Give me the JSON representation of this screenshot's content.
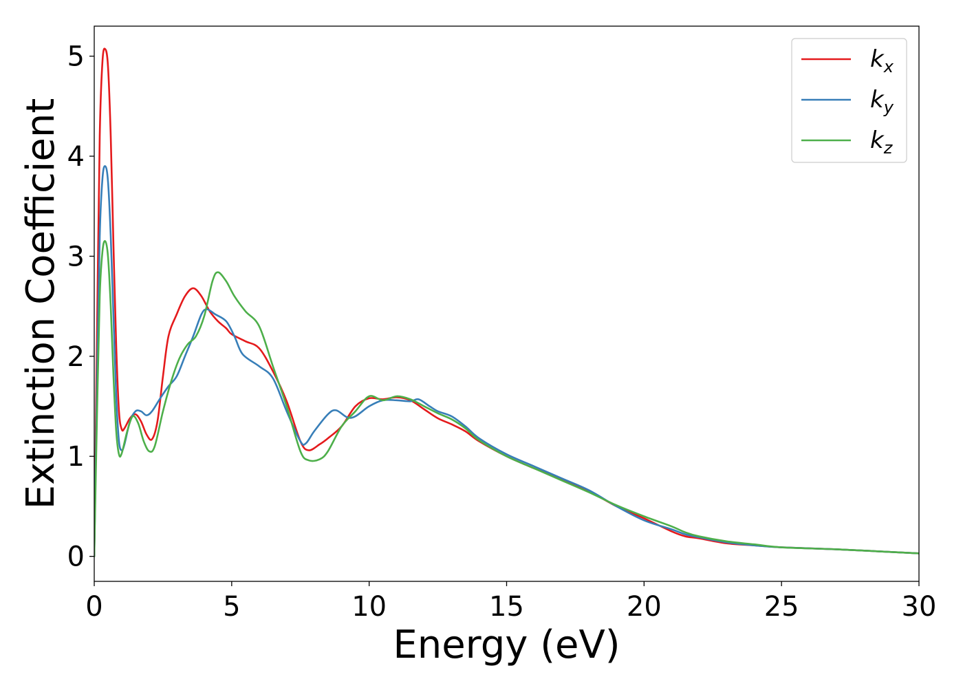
{
  "chart_data": {
    "type": "line",
    "title": "",
    "xlabel": "Energy (eV)",
    "ylabel": "Extinction Coefficient",
    "xlim": [
      0,
      30
    ],
    "ylim": [
      -0.25,
      5.3
    ],
    "xticks": [
      0,
      5,
      10,
      15,
      20,
      25,
      30
    ],
    "yticks": [
      0,
      1,
      2,
      3,
      4,
      5
    ],
    "grid": false,
    "legend_position": "top-right",
    "series": [
      {
        "name": "k_x",
        "label_main": "k",
        "label_sub": "x",
        "color": "#e41a1c",
        "points": [
          [
            0,
            0
          ],
          [
            0.1,
            2.2
          ],
          [
            0.2,
            4.2
          ],
          [
            0.3,
            4.95
          ],
          [
            0.4,
            5.07
          ],
          [
            0.5,
            4.9
          ],
          [
            0.6,
            4.2
          ],
          [
            0.7,
            3.1
          ],
          [
            0.8,
            2.1
          ],
          [
            0.9,
            1.45
          ],
          [
            1.0,
            1.27
          ],
          [
            1.1,
            1.28
          ],
          [
            1.3,
            1.38
          ],
          [
            1.5,
            1.42
          ],
          [
            1.7,
            1.35
          ],
          [
            1.9,
            1.22
          ],
          [
            2.1,
            1.17
          ],
          [
            2.3,
            1.35
          ],
          [
            2.5,
            1.8
          ],
          [
            2.7,
            2.2
          ],
          [
            3.0,
            2.42
          ],
          [
            3.3,
            2.6
          ],
          [
            3.6,
            2.68
          ],
          [
            3.9,
            2.6
          ],
          [
            4.2,
            2.45
          ],
          [
            4.5,
            2.35
          ],
          [
            4.8,
            2.28
          ],
          [
            5.0,
            2.22
          ],
          [
            5.5,
            2.15
          ],
          [
            6.0,
            2.08
          ],
          [
            6.5,
            1.85
          ],
          [
            7.0,
            1.55
          ],
          [
            7.5,
            1.15
          ],
          [
            7.8,
            1.06
          ],
          [
            8.2,
            1.12
          ],
          [
            8.5,
            1.18
          ],
          [
            9.0,
            1.3
          ],
          [
            9.5,
            1.5
          ],
          [
            10.0,
            1.58
          ],
          [
            10.5,
            1.57
          ],
          [
            11.0,
            1.59
          ],
          [
            11.5,
            1.56
          ],
          [
            12.0,
            1.47
          ],
          [
            12.5,
            1.38
          ],
          [
            13.0,
            1.32
          ],
          [
            13.5,
            1.25
          ],
          [
            14.0,
            1.15
          ],
          [
            15.0,
            1.0
          ],
          [
            16.0,
            0.88
          ],
          [
            17.0,
            0.77
          ],
          [
            18.0,
            0.65
          ],
          [
            19.0,
            0.5
          ],
          [
            20.0,
            0.38
          ],
          [
            21.0,
            0.25
          ],
          [
            21.5,
            0.2
          ],
          [
            22.0,
            0.18
          ],
          [
            23.0,
            0.13
          ],
          [
            24.0,
            0.11
          ],
          [
            25.0,
            0.09
          ],
          [
            27.0,
            0.07
          ],
          [
            30.0,
            0.03
          ]
        ]
      },
      {
        "name": "k_y",
        "label_main": "k",
        "label_sub": "y",
        "color": "#377eb8",
        "points": [
          [
            0,
            0
          ],
          [
            0.1,
            1.7
          ],
          [
            0.2,
            3.2
          ],
          [
            0.3,
            3.78
          ],
          [
            0.4,
            3.9
          ],
          [
            0.5,
            3.75
          ],
          [
            0.6,
            3.2
          ],
          [
            0.7,
            2.4
          ],
          [
            0.8,
            1.6
          ],
          [
            0.9,
            1.15
          ],
          [
            1.0,
            1.06
          ],
          [
            1.1,
            1.12
          ],
          [
            1.3,
            1.35
          ],
          [
            1.5,
            1.45
          ],
          [
            1.7,
            1.45
          ],
          [
            1.9,
            1.41
          ],
          [
            2.1,
            1.45
          ],
          [
            2.4,
            1.58
          ],
          [
            2.7,
            1.7
          ],
          [
            3.0,
            1.8
          ],
          [
            3.3,
            2.0
          ],
          [
            3.6,
            2.2
          ],
          [
            3.9,
            2.42
          ],
          [
            4.1,
            2.47
          ],
          [
            4.4,
            2.42
          ],
          [
            4.8,
            2.35
          ],
          [
            5.1,
            2.2
          ],
          [
            5.4,
            2.02
          ],
          [
            6.0,
            1.9
          ],
          [
            6.5,
            1.78
          ],
          [
            7.0,
            1.45
          ],
          [
            7.5,
            1.15
          ],
          [
            7.7,
            1.13
          ],
          [
            8.0,
            1.25
          ],
          [
            8.5,
            1.42
          ],
          [
            8.8,
            1.46
          ],
          [
            9.2,
            1.39
          ],
          [
            9.5,
            1.4
          ],
          [
            10.0,
            1.5
          ],
          [
            10.5,
            1.56
          ],
          [
            11.0,
            1.56
          ],
          [
            11.5,
            1.55
          ],
          [
            11.8,
            1.57
          ],
          [
            12.2,
            1.5
          ],
          [
            12.5,
            1.45
          ],
          [
            13.0,
            1.4
          ],
          [
            13.5,
            1.3
          ],
          [
            14.0,
            1.18
          ],
          [
            15.0,
            1.02
          ],
          [
            16.0,
            0.9
          ],
          [
            17.0,
            0.78
          ],
          [
            18.0,
            0.66
          ],
          [
            19.0,
            0.5
          ],
          [
            20.0,
            0.36
          ],
          [
            21.0,
            0.27
          ],
          [
            21.5,
            0.22
          ],
          [
            22.0,
            0.19
          ],
          [
            23.0,
            0.14
          ],
          [
            24.0,
            0.11
          ],
          [
            25.0,
            0.09
          ],
          [
            27.0,
            0.07
          ],
          [
            30.0,
            0.03
          ]
        ]
      },
      {
        "name": "k_z",
        "label_main": "k",
        "label_sub": "z",
        "color": "#4daf4a",
        "points": [
          [
            0,
            0
          ],
          [
            0.1,
            1.4
          ],
          [
            0.2,
            2.6
          ],
          [
            0.3,
            3.05
          ],
          [
            0.4,
            3.15
          ],
          [
            0.5,
            3.0
          ],
          [
            0.6,
            2.5
          ],
          [
            0.7,
            1.8
          ],
          [
            0.8,
            1.25
          ],
          [
            0.9,
            1.02
          ],
          [
            1.0,
            1.03
          ],
          [
            1.2,
            1.25
          ],
          [
            1.4,
            1.4
          ],
          [
            1.6,
            1.33
          ],
          [
            1.8,
            1.15
          ],
          [
            2.0,
            1.05
          ],
          [
            2.2,
            1.1
          ],
          [
            2.5,
            1.45
          ],
          [
            2.8,
            1.75
          ],
          [
            3.1,
            1.98
          ],
          [
            3.4,
            2.12
          ],
          [
            3.7,
            2.2
          ],
          [
            4.0,
            2.4
          ],
          [
            4.3,
            2.75
          ],
          [
            4.5,
            2.84
          ],
          [
            4.8,
            2.75
          ],
          [
            5.1,
            2.6
          ],
          [
            5.5,
            2.45
          ],
          [
            6.0,
            2.3
          ],
          [
            6.5,
            1.9
          ],
          [
            7.0,
            1.5
          ],
          [
            7.5,
            1.05
          ],
          [
            7.8,
            0.96
          ],
          [
            8.2,
            0.97
          ],
          [
            8.5,
            1.05
          ],
          [
            9.0,
            1.3
          ],
          [
            9.5,
            1.45
          ],
          [
            10.0,
            1.6
          ],
          [
            10.5,
            1.56
          ],
          [
            11.0,
            1.6
          ],
          [
            11.5,
            1.57
          ],
          [
            12.0,
            1.5
          ],
          [
            12.5,
            1.43
          ],
          [
            13.0,
            1.37
          ],
          [
            13.5,
            1.28
          ],
          [
            14.0,
            1.16
          ],
          [
            15.0,
            1.0
          ],
          [
            16.0,
            0.88
          ],
          [
            17.0,
            0.76
          ],
          [
            18.0,
            0.64
          ],
          [
            19.0,
            0.51
          ],
          [
            20.0,
            0.4
          ],
          [
            21.0,
            0.3
          ],
          [
            21.5,
            0.24
          ],
          [
            22.0,
            0.2
          ],
          [
            23.0,
            0.15
          ],
          [
            24.0,
            0.12
          ],
          [
            25.0,
            0.09
          ],
          [
            27.0,
            0.07
          ],
          [
            30.0,
            0.03
          ]
        ]
      }
    ]
  }
}
